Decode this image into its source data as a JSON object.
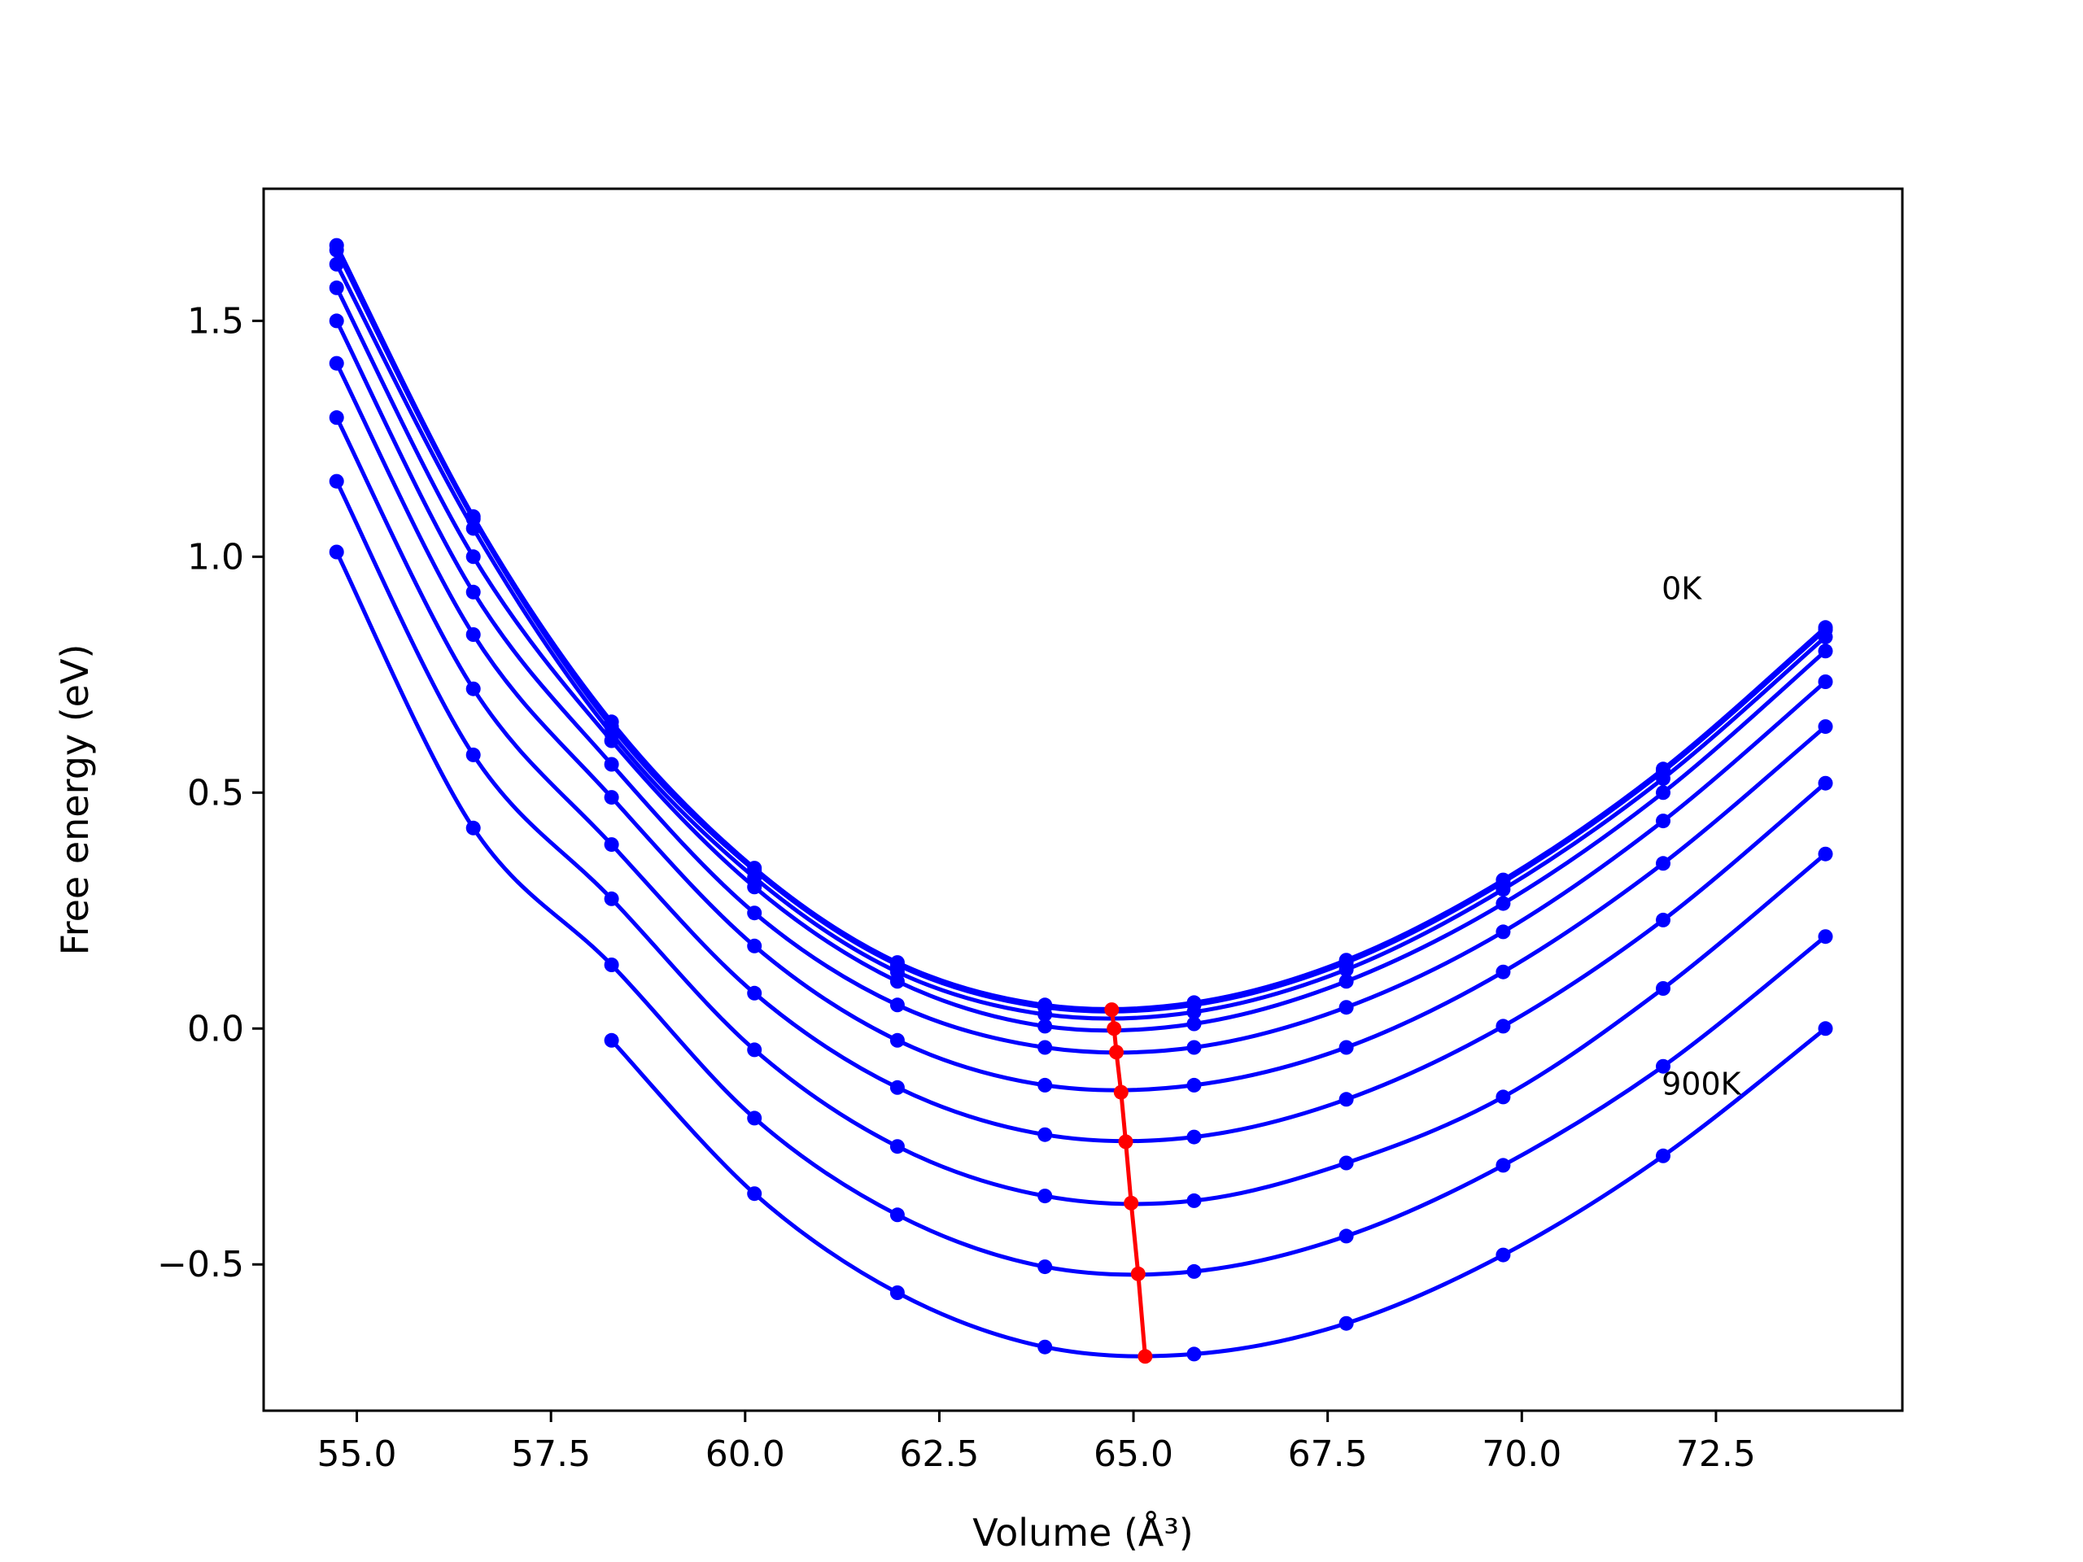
{
  "chart_data": {
    "type": "line",
    "xlabel": "Volume (Å³)",
    "ylabel": "Free energy (eV)",
    "xlim": [
      53.8,
      74.9
    ],
    "ylim": [
      -0.81,
      1.78
    ],
    "xticks": [
      55.0,
      57.5,
      60.0,
      62.5,
      65.0,
      67.5,
      70.0,
      72.5
    ],
    "xtick_labels": [
      "55.0",
      "57.5",
      "60.0",
      "62.5",
      "65.0",
      "67.5",
      "70.0",
      "72.5"
    ],
    "yticks": [
      -0.5,
      0.0,
      0.5,
      1.0,
      1.5
    ],
    "ytick_labels": [
      "−0.5",
      "0.0",
      "0.5",
      "1.0",
      "1.5"
    ],
    "grid": false,
    "colors": {
      "series": "#0000ff",
      "minimum": "#ff0000"
    },
    "volumes": [
      54.74,
      56.5,
      58.28,
      60.12,
      61.96,
      63.86,
      65.78,
      67.74,
      69.76,
      71.82,
      73.91
    ],
    "series": [
      {
        "values": [
          1.66,
          1.085,
          0.65,
          0.34,
          0.14,
          0.05,
          0.055,
          0.145,
          0.315,
          0.55,
          0.85
        ]
      },
      {
        "values": [
          1.65,
          1.08,
          0.64,
          0.335,
          0.135,
          0.045,
          0.05,
          0.14,
          0.31,
          0.545,
          0.845
        ]
      },
      {
        "values": [
          1.62,
          1.06,
          0.625,
          0.32,
          0.12,
          0.03,
          0.035,
          0.125,
          0.295,
          0.53,
          0.83
        ]
      },
      {
        "values": [
          1.57,
          1.0,
          0.61,
          0.3,
          0.1,
          0.005,
          0.01,
          0.1,
          0.265,
          0.5,
          0.8
        ]
      },
      {
        "values": [
          1.5,
          0.925,
          0.56,
          0.245,
          0.05,
          -0.04,
          -0.04,
          0.045,
          0.205,
          0.44,
          0.735
        ]
      },
      {
        "values": [
          1.41,
          0.835,
          0.49,
          0.175,
          -0.025,
          -0.12,
          -0.12,
          -0.04,
          0.12,
          0.35,
          0.64
        ]
      },
      {
        "values": [
          1.295,
          0.72,
          0.39,
          0.075,
          -0.125,
          -0.225,
          -0.23,
          -0.15,
          0.005,
          0.23,
          0.52
        ]
      },
      {
        "values": [
          1.16,
          0.58,
          0.275,
          -0.045,
          -0.25,
          -0.355,
          -0.365,
          -0.285,
          -0.145,
          0.085,
          0.37
        ]
      },
      {
        "values": [
          1.01,
          0.425,
          0.135,
          -0.19,
          -0.395,
          -0.505,
          -0.515,
          -0.44,
          -0.29,
          -0.08,
          0.195
        ]
      },
      {
        "values": [
          null,
          null,
          -0.025,
          -0.35,
          -0.56,
          -0.675,
          -0.69,
          -0.625,
          -0.48,
          -0.27,
          0.0
        ]
      }
    ],
    "minimum_line": {
      "x": [
        64.72,
        64.75,
        64.78,
        64.84,
        64.9,
        64.97,
        65.06,
        65.15
      ],
      "y": [
        0.04,
        0.0,
        -0.05,
        -0.135,
        -0.24,
        -0.37,
        -0.52,
        -0.695
      ]
    },
    "annotations": [
      {
        "text": "0K",
        "x": 71.8,
        "y": 0.91
      },
      {
        "text": "900K",
        "x": 71.8,
        "y": -0.14
      }
    ]
  }
}
